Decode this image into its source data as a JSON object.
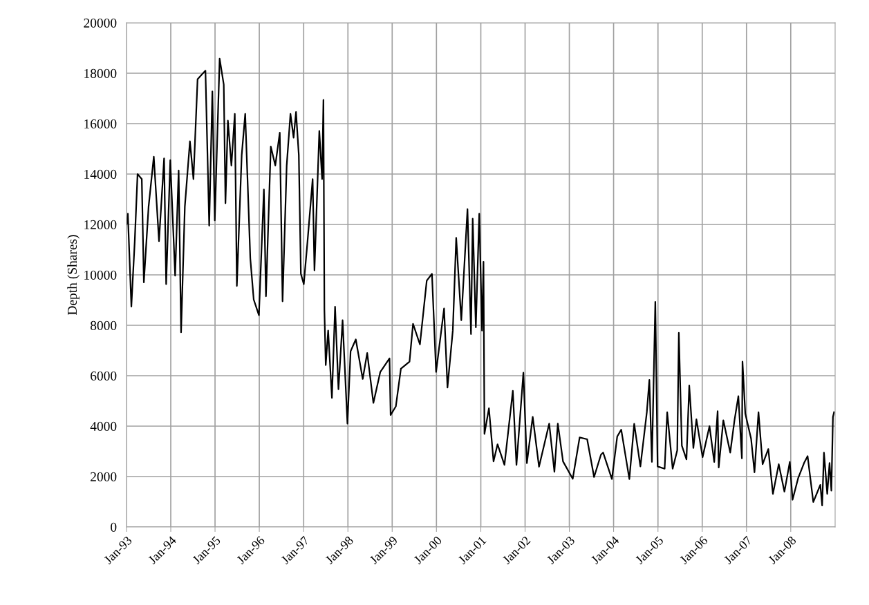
{
  "chart_data": {
    "type": "line",
    "ylabel": "Depth (Shares)",
    "grid": true,
    "marker": "none",
    "line_style": "solid",
    "xlim": [
      "1993-01-01",
      "2009-01-01"
    ],
    "xticks": [
      {
        "value": "1993-01-01",
        "label": "Jan-93"
      },
      {
        "value": "1994-01-01",
        "label": "Jan-94"
      },
      {
        "value": "1995-01-01",
        "label": "Jan-95"
      },
      {
        "value": "1996-01-01",
        "label": "Jan-96"
      },
      {
        "value": "1997-01-01",
        "label": "Jan-97"
      },
      {
        "value": "1998-01-01",
        "label": "Jan-98"
      },
      {
        "value": "1999-01-01",
        "label": "Jan-99"
      },
      {
        "value": "2000-01-01",
        "label": "Jan-00"
      },
      {
        "value": "2001-01-01",
        "label": "Jan-01"
      },
      {
        "value": "2002-01-01",
        "label": "Jan-02"
      },
      {
        "value": "2003-01-01",
        "label": "Jan-03"
      },
      {
        "value": "2004-01-01",
        "label": "Jan-04"
      },
      {
        "value": "2005-01-01",
        "label": "Jan-05"
      },
      {
        "value": "2006-01-01",
        "label": "Jan-06"
      },
      {
        "value": "2007-01-01",
        "label": "Jan-07"
      },
      {
        "value": "2008-01-01",
        "label": "Jan-08"
      }
    ],
    "ylim": [
      0,
      20000
    ],
    "yticks": [
      0,
      2000,
      4000,
      6000,
      8000,
      10000,
      12000,
      14000,
      16000,
      18000,
      20000
    ],
    "x": [
      "1993-01-01",
      "1993-01-12",
      "1993-02-10",
      "1993-03-10",
      "1993-04-02",
      "1993-05-07",
      "1993-05-24",
      "1993-07-02",
      "1993-08-14",
      "1993-09-26",
      "1993-11-07",
      "1993-11-24",
      "1993-12-28",
      "1994-02-06",
      "1994-03-07",
      "1994-03-27",
      "1994-04-27",
      "1994-06-08",
      "1994-07-07",
      "1994-08-10",
      "1994-09-16",
      "1994-10-14",
      "1994-11-14",
      "1994-12-10",
      "1994-12-30",
      "1995-02-08",
      "1995-03-14",
      "1995-03-28",
      "1995-04-17",
      "1995-05-16",
      "1995-06-13",
      "1995-06-30",
      "1995-08-09",
      "1995-09-07",
      "1995-10-19",
      "1995-11-16",
      "1995-12-29",
      "1996-02-08",
      "1996-02-25",
      "1996-04-05",
      "1996-05-12",
      "1996-06-18",
      "1996-07-11",
      "1996-08-14",
      "1996-09-14",
      "1996-10-10",
      "1996-10-30",
      "1996-11-22",
      "1996-12-09",
      "1997-01-02",
      "1997-02-02",
      "1997-03-16",
      "1997-03-31",
      "1997-05-10",
      "1997-06-02",
      "1997-06-13",
      "1997-06-21",
      "1997-07-02",
      "1997-07-22",
      "1997-08-22",
      "1997-09-17",
      "1997-10-15",
      "1997-11-18",
      "1997-12-28",
      "1998-01-23",
      "1998-03-07",
      "1998-05-03",
      "1998-06-09",
      "1998-07-30",
      "1998-09-25",
      "1998-12-10",
      "1998-12-19",
      "1999-01-31",
      "1999-03-14",
      "1999-05-24",
      "1999-06-22",
      "1999-08-18",
      "1999-10-13",
      "1999-11-25",
      "1999-12-29",
      "2000-03-04",
      "2000-04-01",
      "2000-05-15",
      "2000-06-12",
      "2000-07-24",
      "2000-09-13",
      "2000-10-12",
      "2000-10-26",
      "2000-11-21",
      "2000-12-19",
      "2001-01-11",
      "2001-01-23",
      "2001-01-31",
      "2001-03-09",
      "2001-04-16",
      "2001-05-19",
      "2001-07-15",
      "2001-09-22",
      "2001-10-22",
      "2001-12-18",
      "2002-01-16",
      "2002-03-05",
      "2002-04-26",
      "2002-07-19",
      "2002-08-31",
      "2002-09-28",
      "2002-11-10",
      "2003-01-29",
      "2003-03-27",
      "2003-05-28",
      "2003-07-24",
      "2003-09-19",
      "2003-10-07",
      "2003-12-18",
      "2004-01-31",
      "2004-03-04",
      "2004-05-10",
      "2004-06-19",
      "2004-08-09",
      "2004-10-01",
      "2004-10-22",
      "2004-11-12",
      "2004-12-10",
      "2004-12-29",
      "2005-02-25",
      "2005-03-18",
      "2005-05-02",
      "2005-06-09",
      "2005-06-22",
      "2005-07-17",
      "2005-08-24",
      "2005-09-16",
      "2005-10-20",
      "2005-11-14",
      "2006-01-04",
      "2006-03-02",
      "2006-04-10",
      "2006-05-08",
      "2006-05-17",
      "2006-06-24",
      "2006-08-20",
      "2006-09-24",
      "2006-10-26",
      "2006-11-24",
      "2006-11-29",
      "2006-12-22",
      "2007-02-08",
      "2007-03-08",
      "2007-04-10",
      "2007-05-14",
      "2007-06-30",
      "2007-08-07",
      "2007-09-24",
      "2007-11-10",
      "2007-12-24",
      "2008-01-16",
      "2008-03-03",
      "2008-04-20",
      "2008-05-19",
      "2008-07-05",
      "2008-09-01",
      "2008-09-16",
      "2008-10-01",
      "2008-10-28",
      "2008-11-16",
      "2008-12-01",
      "2008-12-14",
      "2008-12-23"
    ],
    "series": [
      {
        "color": "#000000",
        "values": [
          12000,
          12430,
          8740,
          11340,
          14000,
          13800,
          9700,
          12700,
          14690,
          11340,
          14620,
          9630,
          14550,
          9970,
          14140,
          7720,
          12700,
          15300,
          13800,
          17760,
          17960,
          18100,
          11950,
          17280,
          12160,
          18580,
          17550,
          12840,
          16120,
          14340,
          16390,
          9560,
          14750,
          16390,
          10650,
          9020,
          8400,
          13390,
          9150,
          15090,
          14340,
          15640,
          8950,
          14340,
          16390,
          15440,
          16460,
          14750,
          10040,
          9630,
          11340,
          13800,
          10180,
          15710,
          13800,
          16940,
          8600,
          6420,
          7790,
          5120,
          8740,
          5460,
          8200,
          4100,
          6970,
          7440,
          5870,
          6900,
          4920,
          6150,
          6690,
          4440,
          4780,
          6280,
          6560,
          8060,
          7240,
          9770,
          10040,
          6150,
          8670,
          5530,
          7790,
          11470,
          8200,
          12610,
          7650,
          12230,
          7920,
          12430,
          7790,
          10520,
          3690,
          4710,
          2600,
          3280,
          2460,
          5400,
          2460,
          6120,
          2530,
          4370,
          2390,
          4100,
          2190,
          4100,
          2600,
          1910,
          3550,
          3480,
          1980,
          2870,
          2950,
          1900,
          3590,
          3860,
          1900,
          4090,
          2400,
          4550,
          5830,
          2580,
          8930,
          2400,
          2310,
          4550,
          2310,
          3040,
          7700,
          3220,
          2680,
          5610,
          3130,
          4270,
          2770,
          4000,
          2580,
          4590,
          2360,
          4230,
          2950,
          4230,
          5190,
          2720,
          6560,
          4500,
          3500,
          2170,
          4550,
          2490,
          3090,
          1310,
          2490,
          1400,
          2580,
          1080,
          1950,
          2540,
          2810,
          990,
          1670,
          850,
          2950,
          1310,
          2540,
          1440,
          4360,
          4550
        ]
      }
    ]
  }
}
